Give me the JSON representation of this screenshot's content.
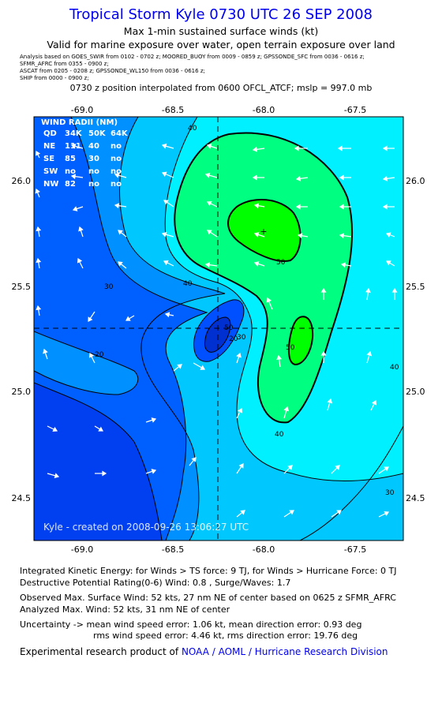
{
  "header": {
    "title": "Tropical Storm Kyle 0730 UTC 26 SEP 2008",
    "subtitle": "Max 1-min sustained surface winds (kt)",
    "validity": "Valid for marine exposure over water, open terrain exposure over land",
    "sources": [
      "Analysis based on  GOES_SWIR from 0102 - 0702 z;  MOORED_BUOY from 0009 - 0859 z;  GPSSONDE_SFC from 0036 - 0616 z;",
      "SFMR_AFRC from 0355 - 0900 z;",
      "ASCAT from 0205 - 0208 z;  GPSSONDE_WL150 from 0036 - 0616 z;",
      "SHIP from 0000 - 0900 z;"
    ],
    "interpolation": "0730 z position interpolated from 0600 OFCL_ATCF; mslp = 997.0 mb"
  },
  "map": {
    "lon_ticks": [
      "-69.0",
      "-68.5",
      "-68.0",
      "-67.5"
    ],
    "lat_ticks": [
      "26.0",
      "25.5",
      "25.0",
      "24.5"
    ],
    "contour_labels": [
      "40",
      "50",
      "30",
      "40",
      "20",
      "50",
      "40",
      "30",
      "40",
      "20",
      "50",
      "30"
    ],
    "credit": "Kyle - created on 2008-09-26 13:06:27 UTC",
    "center": {
      "lon": -68.21,
      "lat": 25.3
    },
    "max_wind_mark": {
      "lon": -67.99,
      "lat": 25.76
    },
    "colors": {
      "band_10_20": "#0060ff",
      "band_20_30": "#0090ff",
      "band_30_40": "#00c8ff",
      "band_40_50": "#00f0ff",
      "band_50_60": "#00ff60",
      "band_60_70": "#00ff00",
      "eye_band": "#0040e0"
    }
  },
  "wind_radii": {
    "title": "WIND RADII (NM)",
    "header": [
      "QD",
      "34K",
      "50K",
      "64K"
    ],
    "rows": [
      [
        "NE",
        "111",
        "40",
        "no"
      ],
      [
        "SE",
        "85",
        "30",
        "no"
      ],
      [
        "SW",
        "no",
        "no",
        "no"
      ],
      [
        "NW",
        "82",
        "no",
        "no"
      ]
    ]
  },
  "stats": {
    "ike": "Integrated Kinetic Energy:  for Winds > TS force: 9 TJ,  for Winds > Hurricane Force: 0 TJ",
    "dpr": "Destructive Potential Rating(0-6)   Wind: 0.8 , Surge/Waves: 1.7",
    "obs_max": "Observed Max. Surface Wind: 52 kts, 27 nm NE of center based on 0625 z SFMR_AFRC",
    "analyzed_max": "Analyzed Max. Wind: 52 kts, 31 nm NE of center",
    "uncert1": "Uncertainty -> mean wind speed error: 1.06 kt,   mean direction error: 0.93 deg",
    "uncert2": "rms wind speed error: 4.46 kt,   rms direction error: 19.76 deg"
  },
  "footer": {
    "text": "Experimental research product of",
    "link": "NOAA / AOML / Hurricane Research Division"
  }
}
